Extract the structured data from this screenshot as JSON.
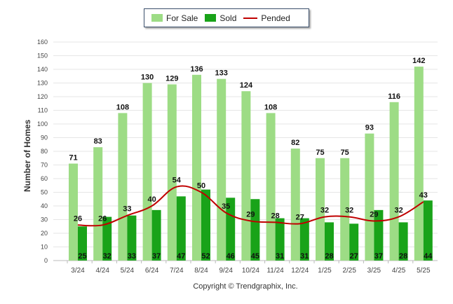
{
  "chart_data": {
    "type": "bar",
    "ylabel": "Number of Homes",
    "xlabel": "",
    "ylim": [
      0,
      160
    ],
    "yticks": [
      0,
      10,
      20,
      30,
      40,
      50,
      60,
      70,
      80,
      90,
      100,
      110,
      120,
      130,
      140,
      150,
      160
    ],
    "categories": [
      "3/24",
      "4/24",
      "5/24",
      "6/24",
      "7/24",
      "8/24",
      "9/24",
      "10/24",
      "11/24",
      "12/24",
      "1/25",
      "2/25",
      "3/25",
      "4/25",
      "5/25"
    ],
    "series": [
      {
        "name": "For Sale",
        "type": "bar",
        "color": "#9ddc85",
        "values": [
          71,
          83,
          108,
          130,
          129,
          136,
          133,
          124,
          108,
          82,
          75,
          75,
          93,
          116,
          142
        ]
      },
      {
        "name": "Sold",
        "type": "bar",
        "color": "#19a319",
        "values": [
          25,
          32,
          33,
          37,
          47,
          52,
          46,
          45,
          31,
          31,
          28,
          27,
          37,
          28,
          44
        ]
      },
      {
        "name": "Pended",
        "type": "line",
        "color": "#c00000",
        "values": [
          26,
          26,
          33,
          40,
          54,
          50,
          35,
          29,
          28,
          27,
          32,
          32,
          29,
          32,
          43
        ]
      }
    ],
    "legend_position": "top-center",
    "grid": true
  },
  "footer": {
    "copyright": "Copyright © Trendgraphix, Inc."
  }
}
